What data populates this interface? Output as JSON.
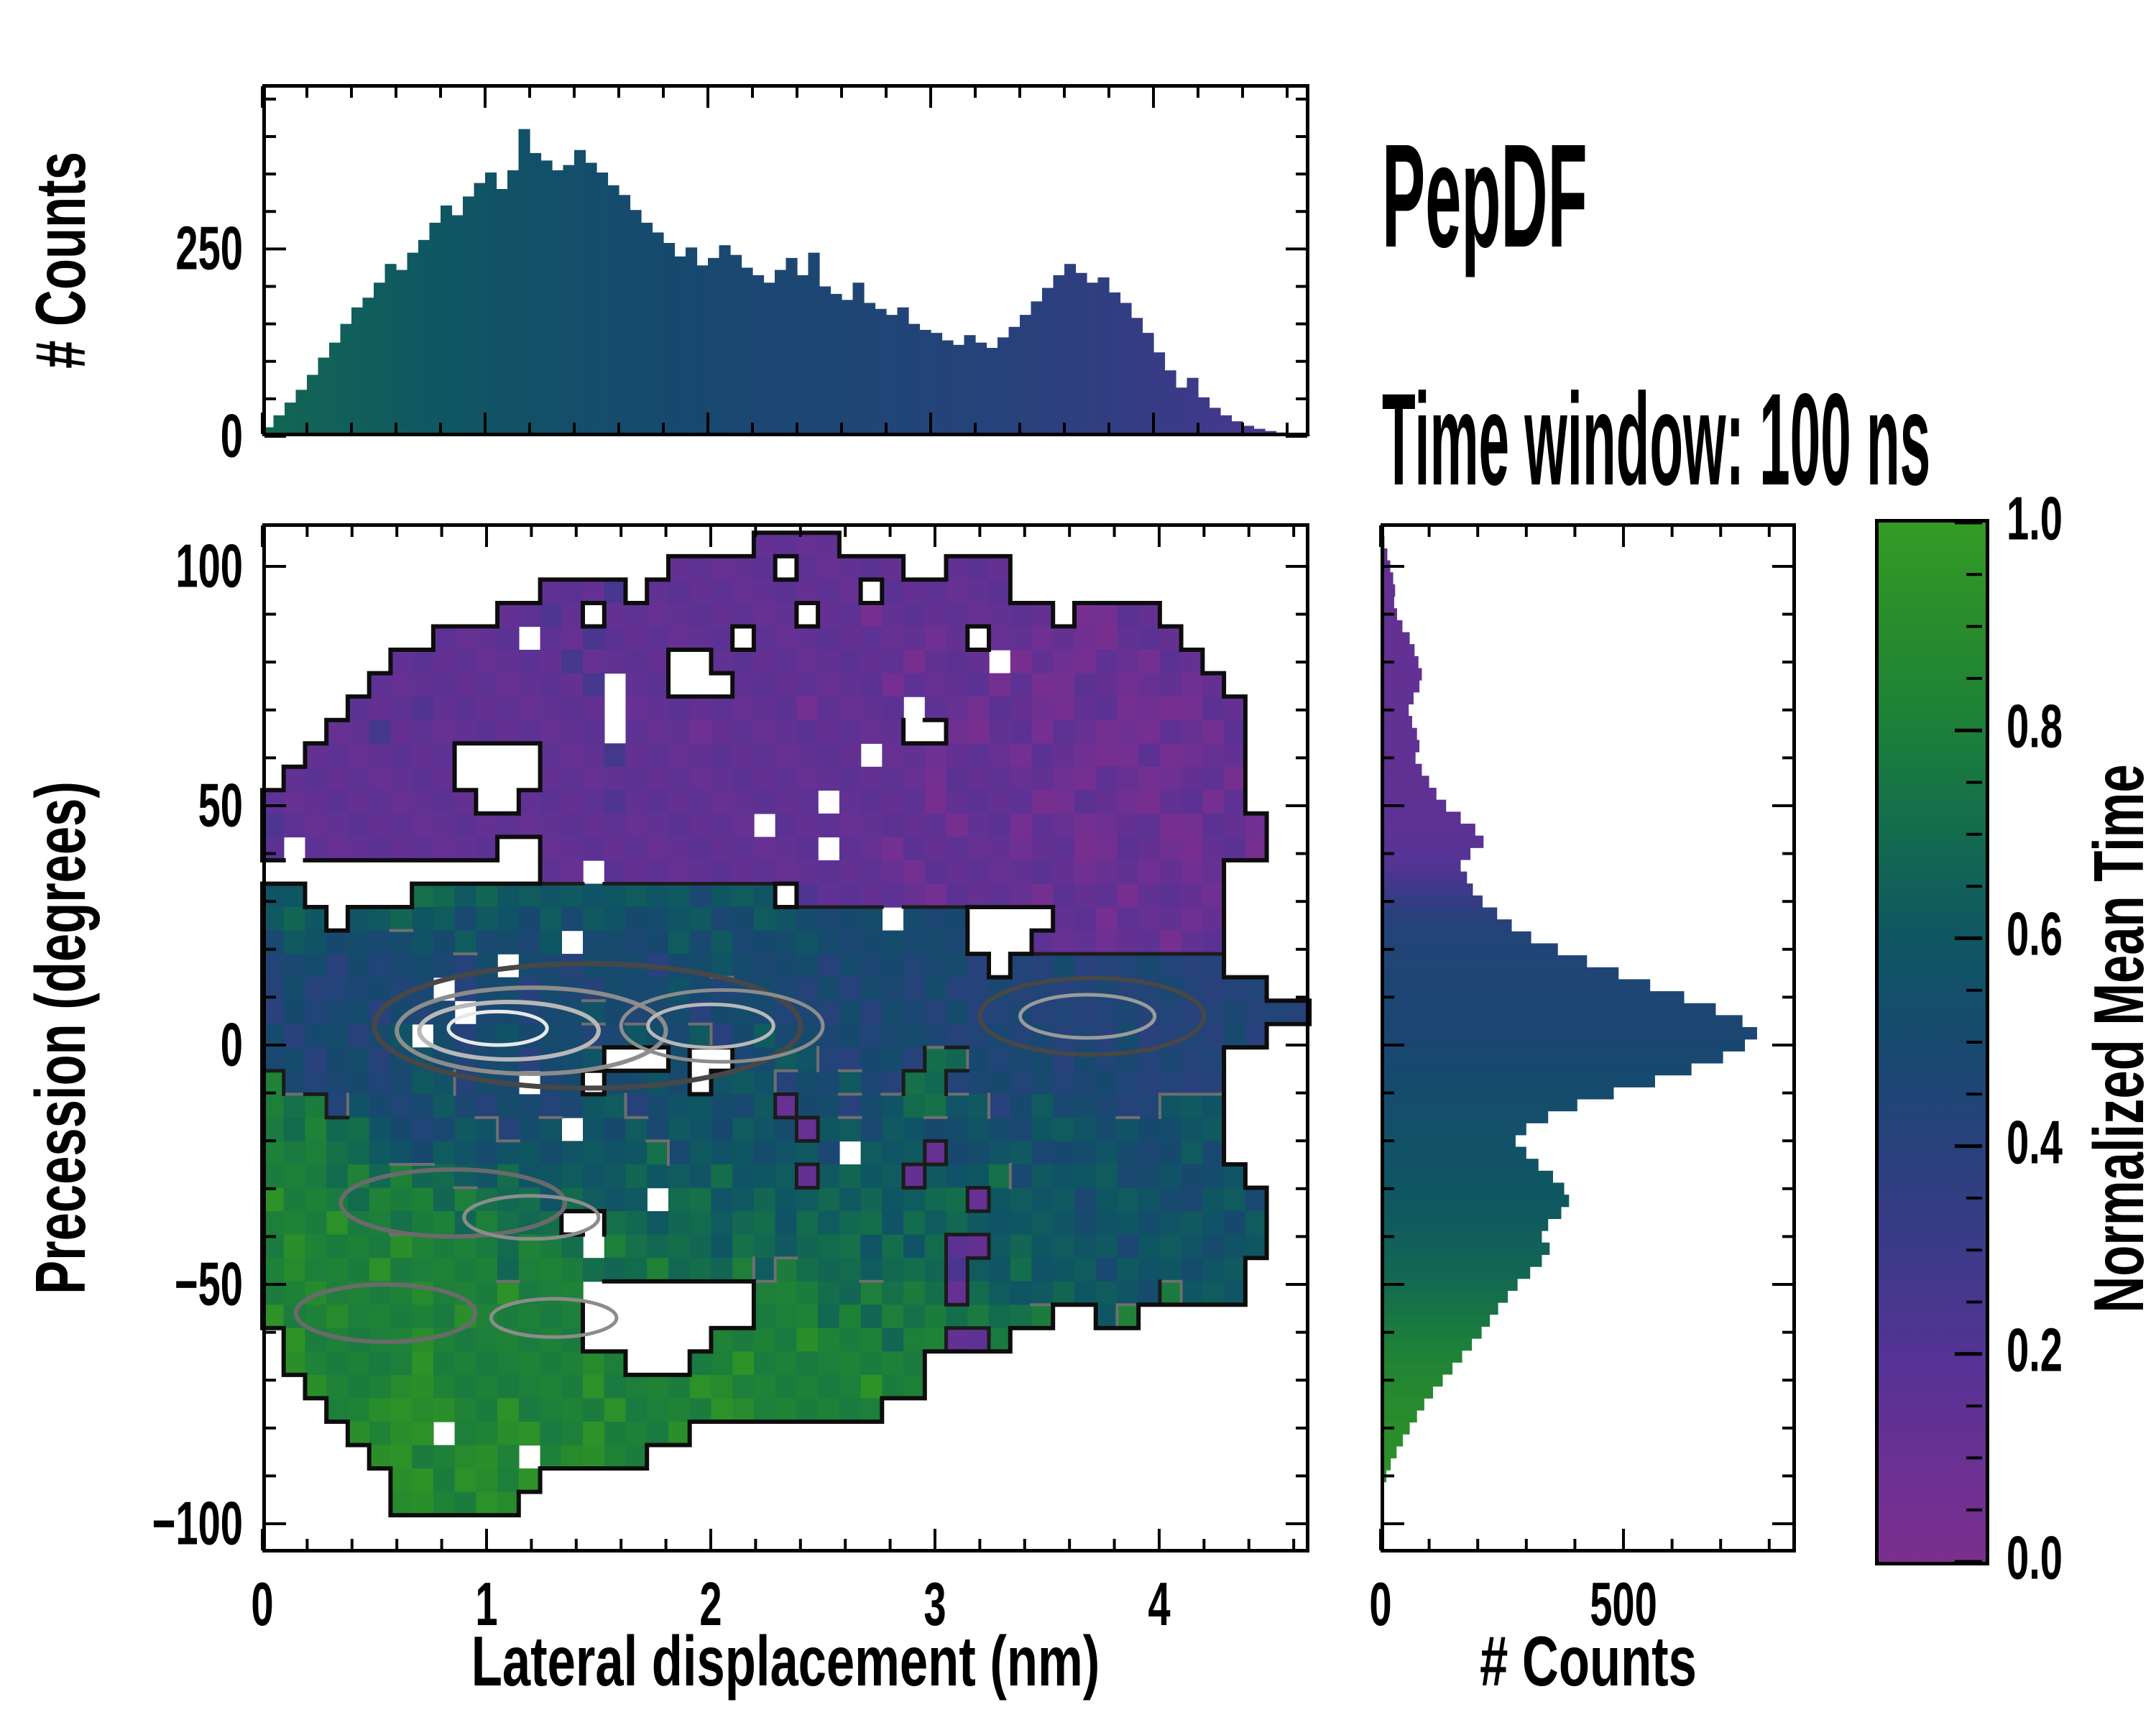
{
  "figure": {
    "title": "PepDF",
    "subtitle": "Time window: 100 ns"
  },
  "colormap_stops": [
    [
      0.0,
      "#7b2f8e"
    ],
    [
      0.1,
      "#6a3093"
    ],
    [
      0.2,
      "#533394"
    ],
    [
      0.3,
      "#3c3a88"
    ],
    [
      0.4,
      "#28417c"
    ],
    [
      0.5,
      "#17496f"
    ],
    [
      0.6,
      "#0f5663"
    ],
    [
      0.7,
      "#136b4e"
    ],
    [
      0.8,
      "#1d7f3a"
    ],
    [
      0.9,
      "#288c2c"
    ],
    [
      1.0,
      "#339c24"
    ]
  ],
  "colorbar": {
    "label": "Normalized Mean Time",
    "tick_values": [
      1.0,
      0.8,
      0.6,
      0.4,
      0.2,
      0.0
    ],
    "tick_labels": [
      "1.0",
      "0.8",
      "0.6",
      "0.4",
      "0.2",
      "0.0"
    ],
    "minor_step": 0.05,
    "vmin": 0.0,
    "vmax": 1.0
  },
  "chart_data": [
    {
      "id": "top_histogram",
      "type": "bar",
      "orientation": "vertical",
      "ylabel": "# Counts",
      "xlim": [
        0,
        4.7
      ],
      "ylim": [
        0,
        470
      ],
      "ytick_values": [
        0,
        250
      ],
      "ytick_labels": [
        "0",
        "250"
      ],
      "y_minor_step": 50,
      "xtick_values": [
        0,
        1,
        2,
        3,
        4
      ],
      "x_minor_step": 0.2,
      "bin_start": 0.0,
      "bin_width": 0.05,
      "values": [
        12,
        28,
        45,
        62,
        82,
        105,
        125,
        150,
        172,
        185,
        205,
        230,
        222,
        245,
        262,
        285,
        308,
        295,
        320,
        338,
        352,
        330,
        355,
        410,
        378,
        368,
        355,
        362,
        382,
        365,
        352,
        335,
        322,
        302,
        285,
        272,
        258,
        240,
        252,
        228,
        238,
        255,
        242,
        225,
        215,
        205,
        222,
        238,
        215,
        245,
        200,
        190,
        182,
        205,
        178,
        170,
        162,
        172,
        150,
        142,
        138,
        128,
        122,
        135,
        125,
        118,
        132,
        146,
        162,
        180,
        198,
        215,
        230,
        218,
        205,
        212,
        192,
        178,
        158,
        138,
        112,
        88,
        65,
        78,
        52,
        38,
        28,
        20,
        14,
        10,
        7,
        5,
        3,
        2
      ],
      "bar_mean_time_points": [
        [
          0,
          0.68
        ],
        [
          0.4,
          0.64
        ],
        [
          0.8,
          0.6
        ],
        [
          1.2,
          0.56
        ],
        [
          1.6,
          0.52
        ],
        [
          2.0,
          0.49
        ],
        [
          2.6,
          0.46
        ],
        [
          3.2,
          0.42
        ],
        [
          3.6,
          0.38
        ],
        [
          4.0,
          0.33
        ],
        [
          4.3,
          0.27
        ],
        [
          4.7,
          0.24
        ]
      ]
    },
    {
      "id": "joint_heatmap",
      "type": "heatmap",
      "xlabel": "Lateral displacement (nm)",
      "ylabel": "Precession (degrees)",
      "value_label": "Normalized Mean Time",
      "xlim": [
        0,
        4.67
      ],
      "ylim": [
        -106,
        109
      ],
      "xtick_values": [
        0,
        1,
        2,
        3,
        4
      ],
      "xtick_labels": [
        "0",
        "1",
        "2",
        "3",
        "4"
      ],
      "x_minor_step": 0.2,
      "ytick_values": [
        100,
        50,
        0,
        -50,
        -100
      ],
      "ytick_labels": [
        "100",
        "50",
        "0",
        "−50",
        "−100"
      ],
      "y_minor_step": 10,
      "grid": {
        "cols": 49,
        "rows": 44,
        "x0": 0.0,
        "dx": 0.09531,
        "deg_top": 107.0,
        "d_deg": 4.886,
        "value_map": {
          "0": 0.05,
          "1": 0.14,
          "2": 0.24,
          "3": 0.33,
          "4": 0.42,
          "5": 0.5,
          "6": 0.6,
          "7": 0.7,
          "8": 0.8,
          "9": 0.92
        },
        "legend": "digit=normalized mean time bucket, dot=empty, w=white speckle",
        "rows_data": [
          ".......................1111......................",
          "...................11111.11111..111..............",
          ".............1112.1111111111.111111..............",
          "...........1121.111111111.11011111111.0011.......",
          "........1111w112111111.1111111101.110100111......",
          "......1111111121111..1111111110111w010011011.....",
          ".....11111111112w11...11111110111101001101101....",
          "....111211111111w1111111101111w110110011000011...",
          "...1121111111111w1110111111111..00110110001101...",
          "..1111111....111211111111111w11011101100010011...",
          ".11111111....111111111111111111011111001100110...",
          "1111111111..11112111111111w1111011110011001101...",
          "21111111111111111111111w11111111011011001100110..",
          "1w111111111..1111111111111w11011111011001100110..",
          ".............11w11111111111111011111110110101....",
          "66.....77676666666665666.21111101111011101110....",
          "676.6676656656566556655665555w555....11011101....",
          "56655556565556w555565655565555555...111011011....",
          "45545455545w5545554556555545554554.4454445444....",
          "45445545w45545545556545554545545445444454454444..",
          "454554545w554556545545554545455454454444544445444",
          "5455456w545655545655645655554555445454445444454..",
          "5545545654554556...5..55664455477545545454544....",
          "854554566455w55.5565.666455654774554545544444....",
          "878465456545545664566556155456776645655544666....",
          "87877654566456w656566566516656655655666565566....",
          "888776656656656666756665665w66615566555655565....",
          "8887878776676666676667666167661666756666556556...",
          "988878887877767666w7766766767667716666566655665..",
          "88898878878777..7767767767677676766666566566656..",
          "898888988887887w8777767767776767116766665666566..",
          "8988898888878887778777868777677726676665666566...",
          "889888898889888w.......88877878717666766658666...",
          "988988888988888........88878787878778..68........",
          ".98888898888888......88889888788118..............",
          ".9888889888888898...88988888888..................",
          "..98889988888889888899888888988..................",
          "...88999988988889888899888888....................",
          "....9899w88998898889.............................",
          ".....9988998w89988...............................",
          "......9989989....................................",
          "......998899.....................................",
          ".................................................",
          "................................................."
        ]
      },
      "contour_rings": [
        {
          "x": 1.45,
          "y": 4,
          "rx": 0.95,
          "ry": 13,
          "color": "#474747",
          "w": 7
        },
        {
          "x": 1.2,
          "y": 3,
          "rx": 0.6,
          "ry": 9,
          "color": "#8c8c8c",
          "w": 6
        },
        {
          "x": 1.1,
          "y": 3,
          "rx": 0.4,
          "ry": 6,
          "color": "#b8b8b8",
          "w": 6
        },
        {
          "x": 1.05,
          "y": 3.5,
          "rx": 0.22,
          "ry": 3.5,
          "color": "#e8e8e8",
          "w": 5
        },
        {
          "x": 2.05,
          "y": 4,
          "rx": 0.45,
          "ry": 7.5,
          "color": "#8c8c8c",
          "w": 5
        },
        {
          "x": 2.0,
          "y": 4,
          "rx": 0.28,
          "ry": 4.5,
          "color": "#b8b8b8",
          "w": 5
        },
        {
          "x": 3.7,
          "y": 6,
          "rx": 0.5,
          "ry": 8,
          "color": "#474747",
          "w": 6
        },
        {
          "x": 3.68,
          "y": 6,
          "rx": 0.3,
          "ry": 4.5,
          "color": "#9a9a9a",
          "w": 5
        },
        {
          "x": 0.85,
          "y": -33,
          "rx": 0.5,
          "ry": 7,
          "color": "#6a6a6a",
          "w": 6
        },
        {
          "x": 1.2,
          "y": -36,
          "rx": 0.3,
          "ry": 4.5,
          "color": "#8c8c8c",
          "w": 5
        },
        {
          "x": 0.55,
          "y": -56,
          "rx": 0.4,
          "ry": 6,
          "color": "#6a6a6a",
          "w": 6
        },
        {
          "x": 1.3,
          "y": -57,
          "rx": 0.28,
          "ry": 4,
          "color": "#8c8c8c",
          "w": 5
        }
      ]
    },
    {
      "id": "right_histogram",
      "type": "bar",
      "orientation": "horizontal",
      "xlabel": "# Counts",
      "xlim": [
        0,
        855
      ],
      "ylim": [
        -106,
        109
      ],
      "xtick_values": [
        0,
        500
      ],
      "xtick_labels": [
        "0",
        "500"
      ],
      "x_minor_step": 100,
      "bin_start_deg": 105.0,
      "bin_step_deg": -2.5,
      "values": [
        8,
        14,
        20,
        26,
        30,
        28,
        34,
        45,
        60,
        70,
        78,
        85,
        80,
        68,
        58,
        65,
        75,
        80,
        72,
        85,
        100,
        115,
        135,
        165,
        195,
        212,
        185,
        165,
        178,
        190,
        210,
        240,
        270,
        310,
        365,
        425,
        490,
        555,
        625,
        690,
        745,
        775,
        750,
        705,
        640,
        565,
        480,
        405,
        345,
        300,
        278,
        300,
        325,
        355,
        378,
        388,
        372,
        345,
        332,
        348,
        332,
        308,
        282,
        262,
        242,
        225,
        208,
        188,
        168,
        148,
        128,
        108,
        90,
        75,
        60,
        46,
        33,
        21,
        12,
        5
      ],
      "bar_mean_time_points": [
        [
          105,
          0.13
        ],
        [
          60,
          0.14
        ],
        [
          45,
          0.16
        ],
        [
          38,
          0.2
        ],
        [
          33,
          0.28
        ],
        [
          28,
          0.38
        ],
        [
          22,
          0.44
        ],
        [
          10,
          0.46
        ],
        [
          0,
          0.48
        ],
        [
          -10,
          0.52
        ],
        [
          -20,
          0.56
        ],
        [
          -30,
          0.6
        ],
        [
          -40,
          0.64
        ],
        [
          -48,
          0.68
        ],
        [
          -55,
          0.74
        ],
        [
          -62,
          0.8
        ],
        [
          -70,
          0.86
        ],
        [
          -80,
          0.91
        ],
        [
          -95,
          0.95
        ]
      ]
    }
  ]
}
